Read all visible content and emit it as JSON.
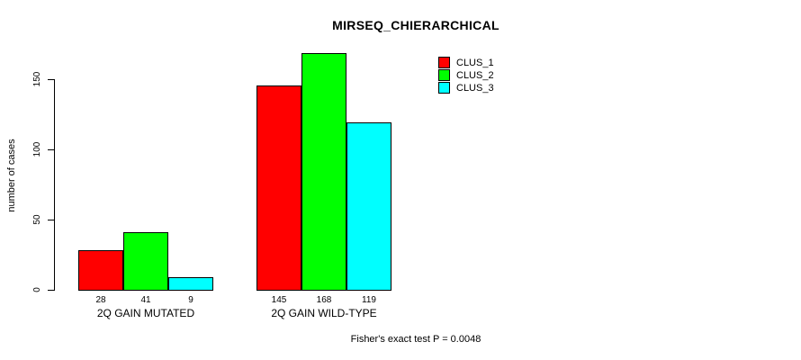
{
  "chart_data": {
    "type": "bar",
    "title": "MIRSEQ_CHIERARCHICAL",
    "ylabel": "number of cases",
    "xlabel": "",
    "yticks": [
      0,
      50,
      100,
      150
    ],
    "ylim": [
      0,
      168
    ],
    "grid": false,
    "legend_position": "top-right",
    "categories": [
      "2Q GAIN MUTATED",
      "2Q GAIN WILD-TYPE"
    ],
    "series": [
      {
        "name": "CLUS_1",
        "color": "#ff0000",
        "values": [
          28,
          145
        ]
      },
      {
        "name": "CLUS_2",
        "color": "#00ff00",
        "values": [
          41,
          168
        ]
      },
      {
        "name": "CLUS_3",
        "color": "#00ffff",
        "values": [
          9,
          119
        ]
      }
    ],
    "bar_value_labels": [
      [
        "28",
        "41",
        "9"
      ],
      [
        "145",
        "168",
        "119"
      ]
    ],
    "footnote": "Fisher's exact test P = 0.0048"
  }
}
